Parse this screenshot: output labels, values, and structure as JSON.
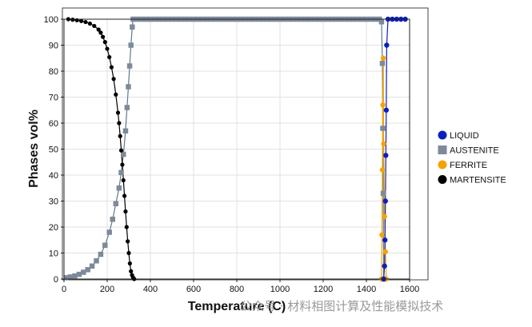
{
  "chart_data": {
    "type": "scatter",
    "xlabel": "Temperature (C)",
    "ylabel": "Phases vol%",
    "xlim": [
      0,
      1600
    ],
    "ylim": [
      0,
      100
    ],
    "xticks": [
      0,
      200,
      400,
      600,
      800,
      1000,
      1200,
      1400,
      1600
    ],
    "yticks": [
      0,
      10,
      20,
      30,
      40,
      50,
      60,
      70,
      80,
      90,
      100
    ],
    "grid": true,
    "legend_position": "right",
    "series": [
      {
        "name": "LIQUID",
        "color": "#0b1fbf",
        "marker": "circle",
        "x": [
          1480,
          1484,
          1486,
          1488,
          1490,
          1492,
          1494,
          1500,
          1520,
          1540,
          1560,
          1580
        ],
        "y": [
          0,
          5,
          15,
          30,
          47.6,
          65,
          90,
          100,
          100,
          100,
          100,
          100
        ]
      },
      {
        "name": "AUSTENITE",
        "color": "#7d8a99",
        "marker": "square",
        "x": [
          10,
          30,
          50,
          70,
          90,
          110,
          130,
          150,
          170,
          190,
          210,
          225,
          240,
          255,
          265,
          275,
          285,
          292,
          298,
          304,
          310,
          316,
          320,
          340,
          360,
          380,
          400,
          420,
          440,
          460,
          480,
          500,
          520,
          540,
          560,
          580,
          600,
          620,
          640,
          660,
          680,
          700,
          720,
          740,
          760,
          780,
          800,
          820,
          840,
          860,
          880,
          900,
          920,
          940,
          960,
          980,
          1000,
          1020,
          1040,
          1060,
          1080,
          1100,
          1120,
          1140,
          1160,
          1180,
          1200,
          1220,
          1240,
          1260,
          1280,
          1300,
          1320,
          1340,
          1360,
          1380,
          1400,
          1420,
          1440,
          1460,
          1470,
          1474,
          1476,
          1478,
          1480
        ],
        "y": [
          0.5,
          0.8,
          1.2,
          1.8,
          2.6,
          3.6,
          5,
          7,
          9.5,
          13,
          18,
          23,
          29,
          35,
          41,
          48,
          57,
          66,
          74,
          82,
          90,
          97,
          100,
          100,
          100,
          100,
          100,
          100,
          100,
          100,
          100,
          100,
          100,
          100,
          100,
          100,
          100,
          100,
          100,
          100,
          100,
          100,
          100,
          100,
          100,
          100,
          100,
          100,
          100,
          100,
          100,
          100,
          100,
          100,
          100,
          100,
          100,
          100,
          100,
          100,
          100,
          100,
          100,
          100,
          100,
          100,
          100,
          100,
          100,
          100,
          100,
          100,
          100,
          100,
          100,
          100,
          100,
          100,
          100,
          100,
          99,
          83,
          58,
          33,
          0
        ]
      },
      {
        "name": "FERRITE",
        "color": "#f5a300",
        "marker": "circle",
        "x": [
          1470,
          1472,
          1474,
          1476,
          1478,
          1480,
          1484,
          1488,
          1492
        ],
        "y": [
          0,
          17,
          42,
          67,
          85,
          52,
          24,
          10.5,
          0
        ]
      },
      {
        "name": "MARTENSITE",
        "color": "#000000",
        "marker": "circle",
        "x": [
          20,
          40,
          60,
          80,
          100,
          120,
          140,
          160,
          170,
          180,
          190,
          200,
          210,
          220,
          230,
          240,
          250,
          255,
          260,
          265,
          270,
          275,
          280,
          285,
          290,
          295,
          300,
          305,
          310,
          315,
          320,
          325
        ],
        "y": [
          100,
          99.8,
          99.6,
          99.3,
          98.9,
          98.3,
          97.4,
          96,
          94.8,
          93.2,
          91.2,
          88.6,
          85.4,
          81.5,
          77,
          71,
          64,
          60,
          55,
          49.5,
          44,
          38,
          32,
          26,
          20,
          14.5,
          10,
          6,
          3,
          1.5,
          0.5,
          0
        ]
      }
    ]
  },
  "watermark": "公众号 · 材料相图计算及性能模拟技术"
}
